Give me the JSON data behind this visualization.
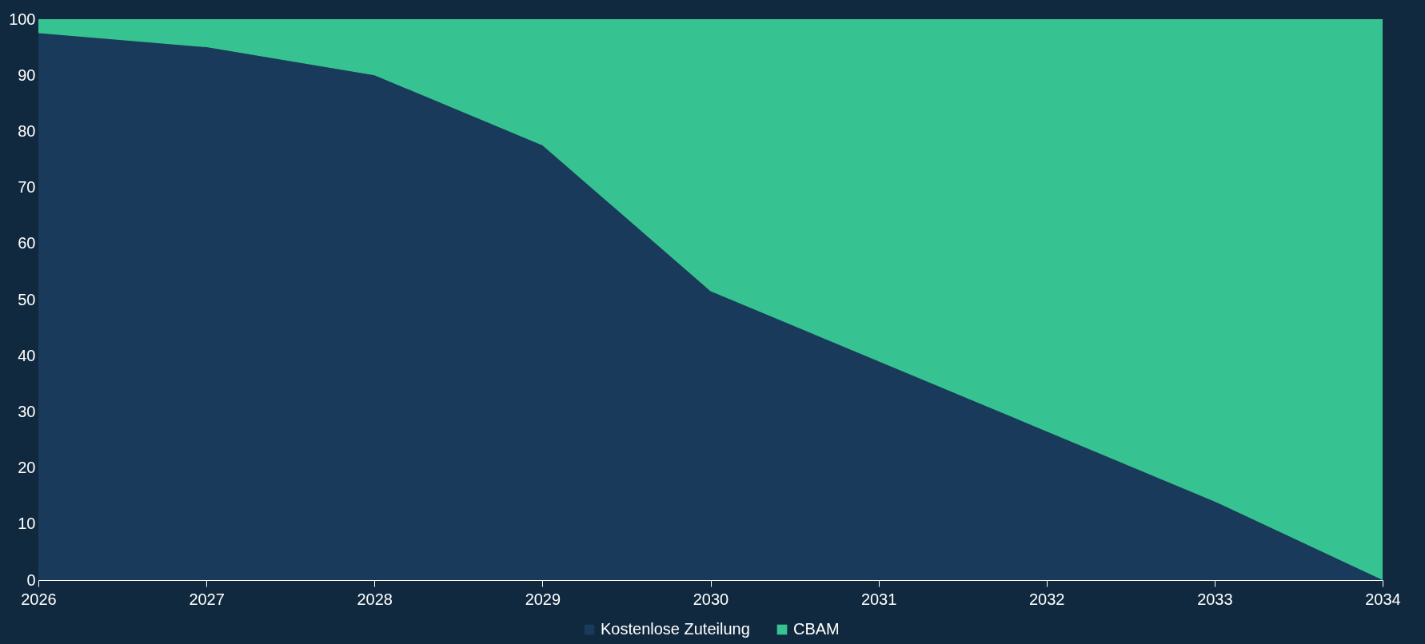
{
  "chart_data": {
    "type": "area",
    "stacked": true,
    "x": [
      2026,
      2027,
      2028,
      2029,
      2030,
      2031,
      2032,
      2033,
      2034
    ],
    "series": [
      {
        "name": "Kostenlose Zuteilung",
        "color": "#1a3a5c",
        "values": [
          97.5,
          95,
          90,
          77.5,
          51.5,
          39,
          26.5,
          14,
          0
        ]
      },
      {
        "name": "CBAM",
        "color": "#37c391",
        "values": [
          2.5,
          5,
          10,
          22.5,
          48.5,
          61,
          73.5,
          86,
          100
        ]
      }
    ],
    "xlim": [
      2026,
      2034
    ],
    "xticks": [
      2026,
      2027,
      2028,
      2029,
      2030,
      2031,
      2032,
      2033,
      2034
    ],
    "ylim": [
      0,
      100
    ],
    "yticks": [
      0,
      10,
      20,
      30,
      40,
      50,
      60,
      70,
      80,
      90,
      100
    ],
    "grid": false,
    "legend": "bottom"
  }
}
